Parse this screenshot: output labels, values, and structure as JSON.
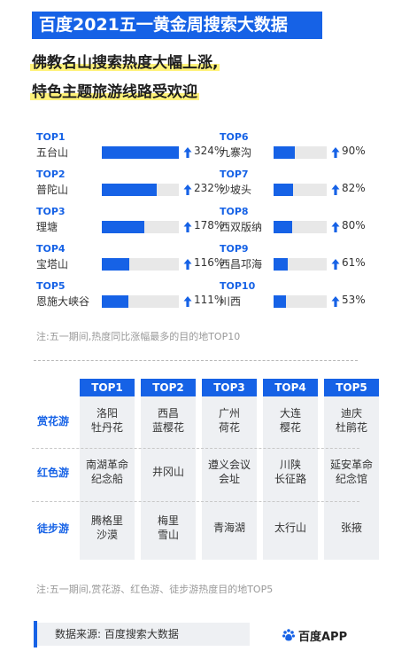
{
  "header": {
    "title": "百度2021五一黄金周搜索大数据",
    "subtitle_line1": "佛教名山搜索热度大幅上涨,",
    "subtitle_line2": "特色主题旅游线路受欢迎"
  },
  "chart_data": [
    {
      "type": "bar",
      "orientation": "horizontal",
      "ranks": [
        "TOP1",
        "TOP2",
        "TOP3",
        "TOP4",
        "TOP5",
        "TOP6",
        "TOP7",
        "TOP8",
        "TOP9",
        "TOP10"
      ],
      "categories": [
        "五台山",
        "普陀山",
        "理塘",
        "宝塔山",
        "恩施大峡谷",
        "九寨沟",
        "沙坡头",
        "西双版纳",
        "西昌邛海",
        "川西"
      ],
      "values": [
        324,
        232,
        178,
        116,
        111,
        90,
        82,
        80,
        61,
        53
      ],
      "value_labels": [
        "324%",
        "232%",
        "178%",
        "116%",
        "111%",
        "90%",
        "82%",
        "80%",
        "61%",
        "53%"
      ],
      "colors": {
        "bar": "#1662e6",
        "track": "#e8e8e8",
        "arrow": "#1662e6"
      },
      "note": "注:五一期间,热度同比涨幅最多的目的地TOP10"
    },
    {
      "type": "table",
      "columns": [
        "TOP1",
        "TOP2",
        "TOP3",
        "TOP4",
        "TOP5"
      ],
      "rows": [
        {
          "label": "赏花游",
          "cells": [
            [
              "洛阳",
              "牡丹花"
            ],
            [
              "西昌",
              "蓝樱花"
            ],
            [
              "广州",
              "荷花"
            ],
            [
              "大连",
              "樱花"
            ],
            [
              "迪庆",
              "杜鹃花"
            ]
          ]
        },
        {
          "label": "红色游",
          "cells": [
            [
              "南湖革命",
              "纪念船"
            ],
            [
              "井冈山"
            ],
            [
              "遵义会议",
              "会址"
            ],
            [
              "川陕",
              "长征路"
            ],
            [
              "延安革命",
              "纪念馆"
            ]
          ]
        },
        {
          "label": "徒步游",
          "cells": [
            [
              "腾格里",
              "沙漠"
            ],
            [
              "梅里",
              "雪山"
            ],
            [
              "青海湖"
            ],
            [
              "太行山"
            ],
            [
              "张掖"
            ]
          ]
        }
      ],
      "note": "注:五一期间,赏花游、红色游、徒步游热度目的地TOP5"
    }
  ],
  "footer": {
    "source": "数据来源:  百度搜索大数据",
    "brand": "百度APP",
    "brand_icon": "baidu-paw-icon"
  }
}
